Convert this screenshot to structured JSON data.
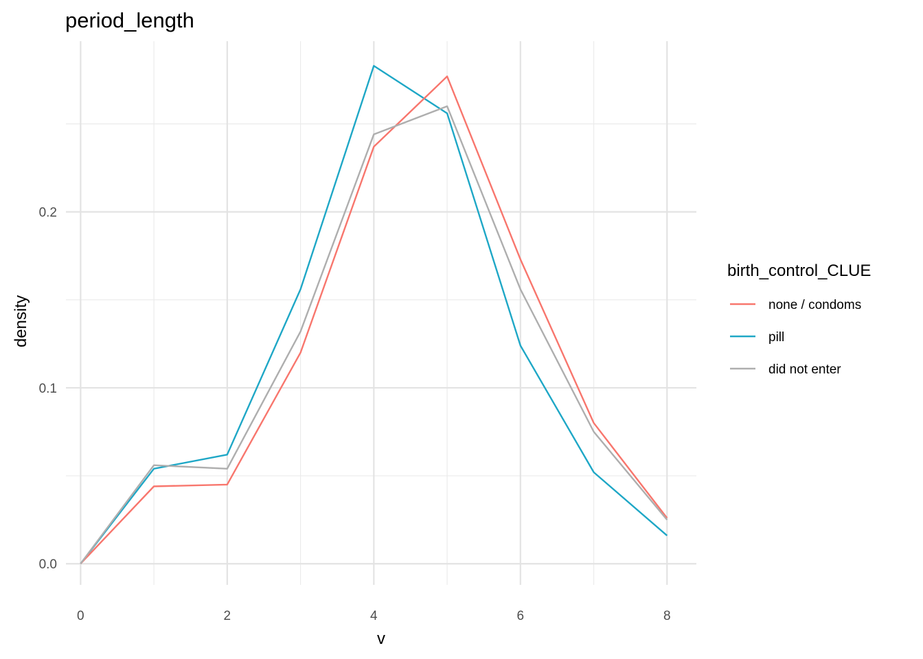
{
  "chart_data": {
    "type": "line",
    "title": "period_length",
    "xlabel": "v",
    "ylabel": "density",
    "xlim": [
      -0.2,
      8.4
    ],
    "ylim": [
      -0.012,
      0.297
    ],
    "x_ticks": [
      0,
      2,
      4,
      6,
      8
    ],
    "x_tick_labels": [
      "0",
      "2",
      "4",
      "6",
      "8"
    ],
    "x_minor_ticks": [
      1,
      3,
      5,
      7
    ],
    "y_ticks": [
      0.0,
      0.1,
      0.2
    ],
    "y_tick_labels": [
      "0.0",
      "0.1",
      "0.2"
    ],
    "y_minor_ticks": [
      0.05,
      0.15,
      0.25
    ],
    "grid": true,
    "legend_title": "birth_control_CLUE",
    "legend_position": "right",
    "x": [
      0,
      1,
      2,
      3,
      4,
      5,
      6,
      7,
      8
    ],
    "series": [
      {
        "name": "none / condoms",
        "color": "#F8766D",
        "values": [
          0.0,
          0.044,
          0.045,
          0.12,
          0.237,
          0.277,
          0.173,
          0.08,
          0.026
        ]
      },
      {
        "name": "pill",
        "color": "#1EA7C6",
        "values": [
          0.0,
          0.054,
          0.062,
          0.156,
          0.283,
          0.256,
          0.124,
          0.052,
          0.016
        ]
      },
      {
        "name": "did not enter",
        "color": "#AEAEAE",
        "values": [
          0.0,
          0.056,
          0.054,
          0.132,
          0.244,
          0.26,
          0.156,
          0.075,
          0.025
        ]
      }
    ]
  }
}
